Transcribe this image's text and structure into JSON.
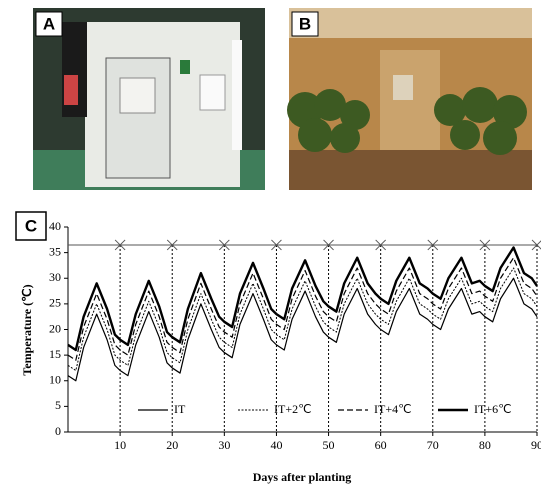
{
  "panel_labels": [
    "A",
    "B",
    "C"
  ],
  "chart_data": {
    "type": "line",
    "xlabel": "Days after planting",
    "ylabel": "Temperature (℃)",
    "xlim": [
      0,
      90
    ],
    "xticks": [
      10,
      20,
      30,
      40,
      50,
      60,
      70,
      80,
      90
    ],
    "ylim": [
      0,
      40
    ],
    "yticks": [
      0,
      5,
      10,
      15,
      20,
      25,
      30,
      35,
      40
    ],
    "legend": "bottom",
    "period_marks": [
      10,
      20,
      30,
      40,
      50,
      60,
      70,
      80,
      90
    ],
    "arrow_level": 36.5,
    "x": [
      0,
      1.5,
      3,
      5.5,
      7.5,
      9,
      10,
      11.5,
      13,
      15.5,
      17.5,
      19,
      20,
      21.5,
      23,
      25.5,
      27.5,
      29,
      30,
      31.5,
      33,
      35.5,
      37.5,
      39,
      40,
      41.5,
      43,
      45.5,
      47.5,
      49,
      50,
      51.5,
      53,
      55.5,
      57.5,
      59,
      60,
      61.5,
      63,
      65.5,
      67.5,
      69,
      70,
      71.5,
      73,
      75.5,
      77.5,
      79,
      80,
      81.5,
      83,
      85.5,
      87.5,
      89,
      90
    ],
    "series": [
      {
        "name": "IT",
        "color": "#000000",
        "width": 1.2,
        "dash": "none",
        "values": [
          11,
          10,
          16.5,
          23,
          18,
          13,
          12,
          11,
          17,
          23.5,
          18.5,
          13.5,
          12.5,
          11.5,
          18,
          25,
          20,
          16.5,
          15.5,
          14.5,
          21,
          27,
          22,
          18,
          17,
          16,
          22,
          27.5,
          22.5,
          19.5,
          18.5,
          17.5,
          23,
          28,
          23,
          21,
          20,
          19,
          23.5,
          28,
          23,
          22,
          21,
          20,
          24,
          28,
          23,
          23.5,
          22.5,
          21.5,
          26,
          30,
          25,
          24,
          22.5
        ]
      },
      {
        "name": "IT+2℃",
        "color": "#000000",
        "width": 1,
        "dash": "2,1.5",
        "values": [
          13,
          12,
          18.5,
          25,
          20,
          15,
          14,
          13,
          19,
          25.5,
          20.5,
          15.5,
          14.5,
          13.5,
          20,
          27,
          22,
          18.5,
          17.5,
          16.5,
          23,
          29,
          24,
          20,
          19,
          18,
          24,
          29.5,
          24.5,
          21.5,
          20.5,
          19.5,
          25,
          30,
          25,
          23,
          22,
          21,
          25.5,
          30,
          25,
          24,
          23,
          22,
          26,
          30,
          25,
          25.5,
          24.5,
          23.5,
          28,
          32,
          27,
          26,
          24.5
        ]
      },
      {
        "name": "IT+4℃",
        "color": "#000000",
        "width": 1.2,
        "dash": "6,3",
        "values": [
          15,
          14,
          20.5,
          27,
          22,
          17,
          16,
          15,
          21,
          27.5,
          22.5,
          17.5,
          16.5,
          15.5,
          22,
          29,
          24,
          20.5,
          19.5,
          18.5,
          25,
          31,
          26,
          22,
          21,
          20,
          26,
          31.5,
          26.5,
          23.5,
          22.5,
          21.5,
          27,
          32,
          27,
          25,
          24,
          23,
          27.5,
          32,
          27,
          26,
          25,
          24,
          28,
          32,
          27,
          27.5,
          26.5,
          25.5,
          30,
          34,
          29,
          28,
          26.5
        ]
      },
      {
        "name": "IT+6℃",
        "color": "#000000",
        "width": 2.4,
        "dash": "none",
        "values": [
          17,
          16,
          22.5,
          29,
          24,
          19,
          18,
          17,
          23,
          29.5,
          24.5,
          19.5,
          18.5,
          17.5,
          24,
          31,
          26,
          22.5,
          21.5,
          20.5,
          27,
          33,
          28,
          24,
          23,
          22,
          28,
          33.5,
          28.5,
          25.5,
          24.5,
          23.5,
          29,
          34,
          29,
          27,
          26,
          25,
          29.5,
          34,
          29,
          28,
          27,
          26,
          30,
          34,
          29,
          29.5,
          28.5,
          27.5,
          32,
          36,
          31,
          30,
          28.5
        ]
      }
    ]
  }
}
